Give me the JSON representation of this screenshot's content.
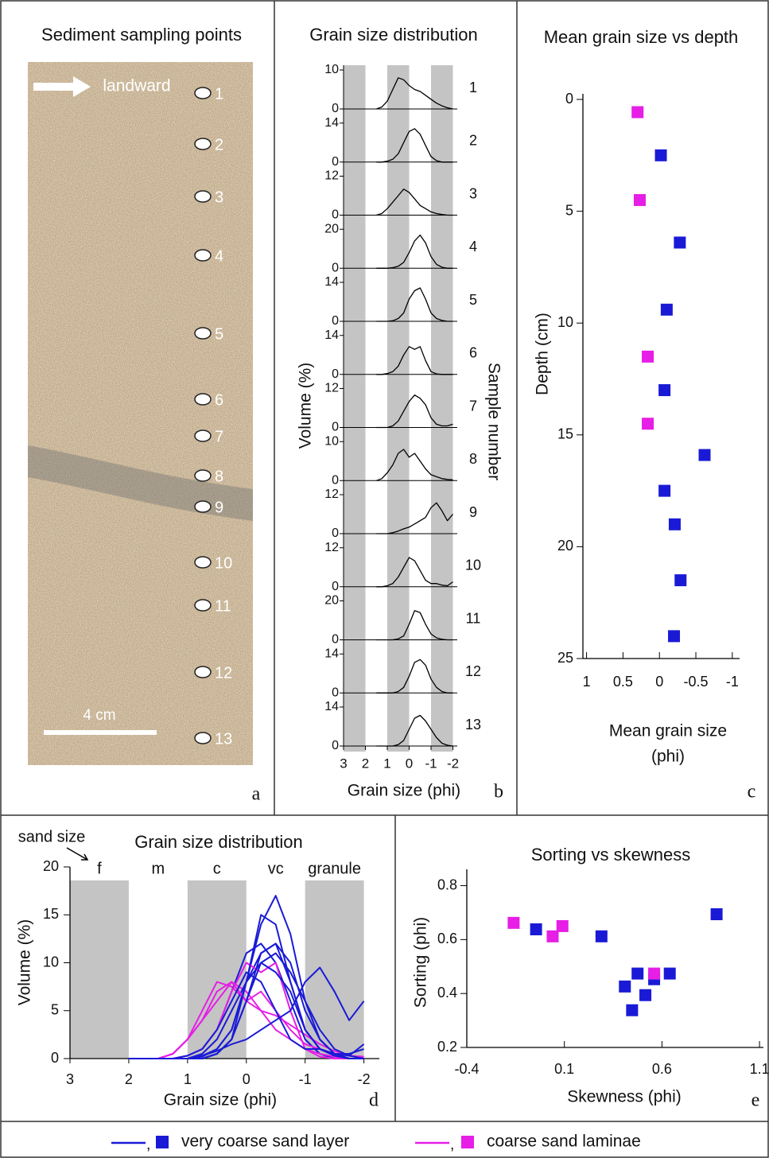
{
  "chart_data": [
    {
      "type": "photo",
      "title": "Sediment sampling points",
      "direction_label": "landward",
      "scale_label": "4 cm",
      "panel_label": "a",
      "samples": [
        1,
        2,
        3,
        4,
        5,
        6,
        7,
        8,
        9,
        10,
        11,
        12,
        13
      ]
    },
    {
      "type": "line-stack",
      "title": "Grain size distribution",
      "x_label": "Grain size (phi)",
      "y_label": "Volume (%)",
      "side_label": "Sample number",
      "panel_label": "b",
      "xlim": [
        3,
        -2.2
      ],
      "xticks": [
        3,
        2,
        1,
        0,
        -1,
        -2
      ],
      "shaded": [
        [
          3,
          2
        ],
        [
          1,
          0
        ],
        [
          -1,
          -2
        ]
      ],
      "x": [
        1.5,
        1.25,
        1,
        0.75,
        0.5,
        0.25,
        0,
        -0.25,
        -0.5,
        -0.75,
        -1,
        -1.25,
        -1.5,
        -1.75,
        -2
      ],
      "series": [
        {
          "name": "1",
          "color": "#000000",
          "ylim": [
            0,
            10
          ],
          "yticks": [
            0,
            10
          ],
          "values": [
            0,
            0.5,
            2,
            5,
            8,
            7.5,
            6,
            5,
            4.5,
            3.5,
            2.5,
            1.5,
            0.8,
            0.3,
            0
          ]
        },
        {
          "name": "2",
          "color": "#000000",
          "ylim": [
            0,
            14
          ],
          "yticks": [
            0,
            14
          ],
          "values": [
            0,
            0,
            0.3,
            1,
            3,
            7,
            11,
            12,
            10,
            6,
            2,
            0.5,
            0,
            0,
            0
          ]
        },
        {
          "name": "3",
          "color": "#000000",
          "ylim": [
            0,
            12
          ],
          "yticks": [
            0,
            12
          ],
          "values": [
            0,
            0.5,
            2,
            4,
            6,
            8,
            7,
            5,
            3,
            2,
            1,
            0.5,
            0.2,
            0,
            0
          ]
        },
        {
          "name": "4",
          "color": "#000000",
          "ylim": [
            0,
            20
          ],
          "yticks": [
            0,
            20
          ],
          "values": [
            0,
            0,
            0,
            0.3,
            1,
            3,
            8,
            14,
            17,
            13,
            6,
            2,
            0.5,
            0,
            0
          ]
        },
        {
          "name": "5",
          "color": "#000000",
          "ylim": [
            0,
            14
          ],
          "yticks": [
            0,
            14
          ],
          "values": [
            0,
            0,
            0,
            0.2,
            1,
            3,
            8,
            11,
            12,
            8,
            3,
            1,
            0.3,
            0,
            0
          ]
        },
        {
          "name": "6",
          "color": "#000000",
          "ylim": [
            0,
            14
          ],
          "yticks": [
            0,
            14
          ],
          "values": [
            0,
            0,
            0.3,
            1,
            3,
            7,
            10,
            9,
            10,
            5,
            1,
            0.2,
            0,
            0,
            0
          ]
        },
        {
          "name": "7",
          "color": "#000000",
          "ylim": [
            0,
            12
          ],
          "yticks": [
            0,
            12
          ],
          "values": [
            0,
            0,
            0,
            0.5,
            2,
            5,
            8,
            10,
            9,
            7,
            3,
            1,
            0.5,
            0.5,
            1
          ]
        },
        {
          "name": "8",
          "color": "#000000",
          "ylim": [
            0,
            10
          ],
          "yticks": [
            0,
            10
          ],
          "values": [
            0,
            0.5,
            2,
            4,
            7,
            8,
            6,
            7,
            5,
            3,
            1.5,
            1,
            0.5,
            0.3,
            0.2
          ]
        },
        {
          "name": "9",
          "color": "#000000",
          "ylim": [
            0,
            12
          ],
          "yticks": [
            0,
            12
          ],
          "values": [
            0,
            0,
            0,
            0.3,
            0.8,
            1.5,
            2,
            3,
            4,
            5,
            8,
            9.5,
            7,
            4,
            6
          ]
        },
        {
          "name": "10",
          "color": "#000000",
          "ylim": [
            0,
            12
          ],
          "yticks": [
            0,
            12
          ],
          "values": [
            0,
            0,
            0.3,
            1,
            3,
            6,
            9,
            8,
            5,
            2,
            1,
            1,
            0.5,
            0.3,
            1.5
          ]
        },
        {
          "name": "11",
          "color": "#000000",
          "ylim": [
            0,
            20
          ],
          "yticks": [
            0,
            20
          ],
          "values": [
            0,
            0,
            0,
            0,
            0.5,
            2,
            8,
            15,
            14,
            8,
            3,
            1,
            0.3,
            0,
            0
          ]
        },
        {
          "name": "12",
          "color": "#000000",
          "ylim": [
            0,
            14
          ],
          "yticks": [
            0,
            14
          ],
          "values": [
            0,
            0,
            0,
            0,
            0.5,
            2,
            6,
            11,
            12,
            10,
            5,
            2,
            0.5,
            0,
            0
          ]
        },
        {
          "name": "13",
          "color": "#000000",
          "ylim": [
            0,
            14
          ],
          "yticks": [
            0,
            14
          ],
          "values": [
            0,
            0,
            0,
            0,
            0.5,
            2,
            6,
            10,
            11,
            9,
            6,
            3,
            1,
            0.3,
            0
          ]
        }
      ]
    },
    {
      "type": "scatter",
      "title": "Mean grain size vs depth",
      "x_label": [
        "Mean grain size",
        "(phi)"
      ],
      "y_label": "Depth (cm)",
      "panel_label": "c",
      "xlim": [
        1.05,
        -1.1
      ],
      "xticks": [
        1,
        0.5,
        0,
        -0.5,
        -1
      ],
      "ylim": [
        0,
        25
      ],
      "yticks": [
        0,
        5,
        10,
        15,
        20,
        25
      ],
      "y_inverted": true,
      "series": [
        {
          "name": "very coarse sand layer",
          "color": "#1a1ad6",
          "x": [
            -0.02,
            -0.28,
            -0.1,
            -0.07,
            -0.62,
            -0.07,
            -0.21,
            -0.29,
            -0.2
          ],
          "values": [
            2.5,
            6.4,
            9.4,
            13,
            15.9,
            17.5,
            19,
            21.5,
            24
          ]
        },
        {
          "name": "coarse sand laminae",
          "color": "#e61ee6",
          "x": [
            0.3,
            0.27,
            0.16,
            0.16
          ],
          "values": [
            0.57,
            4.5,
            11.5,
            14.5
          ]
        }
      ]
    },
    {
      "type": "line-overlay",
      "title": "Grain size distribution",
      "corner_label": "sand size",
      "size_classes": [
        "f",
        "m",
        "c",
        "vc",
        "granule"
      ],
      "x_label": "Grain size (phi)",
      "y_label": "Volume (%)",
      "panel_label": "d",
      "xlim": [
        3,
        -2.1
      ],
      "xticks": [
        3,
        2,
        1,
        0,
        -1,
        -2
      ],
      "ylim": [
        0,
        20
      ],
      "yticks": [
        0,
        5,
        10,
        15,
        20
      ],
      "shaded": [
        [
          3,
          2
        ],
        [
          1,
          0
        ],
        [
          -1,
          -2
        ]
      ],
      "x": [
        2,
        1.75,
        1.5,
        1.25,
        1,
        0.75,
        0.5,
        0.25,
        0,
        -0.25,
        -0.5,
        -0.75,
        -1,
        -1.25,
        -1.5,
        -1.75,
        -2
      ],
      "series": [
        {
          "color": "#e61ee6",
          "values": [
            0,
            0,
            0,
            0.5,
            2,
            5,
            8,
            7.5,
            6,
            5,
            4.5,
            3.5,
            2.5,
            1.5,
            0.8,
            0.3,
            0
          ]
        },
        {
          "color": "#1a1ad6",
          "values": [
            0,
            0,
            0,
            0,
            0.3,
            1,
            3,
            7,
            11,
            12,
            10,
            6,
            2,
            0.5,
            0,
            0,
            0
          ]
        },
        {
          "color": "#e61ee6",
          "values": [
            0,
            0,
            0,
            0.5,
            2,
            4,
            6,
            8,
            7,
            5,
            3,
            2,
            1,
            0.5,
            0.2,
            0,
            0
          ]
        },
        {
          "color": "#1a1ad6",
          "values": [
            0,
            0,
            0,
            0,
            0,
            0.3,
            1,
            3,
            8,
            14,
            17,
            13,
            6,
            2,
            0.5,
            0,
            0
          ]
        },
        {
          "color": "#1a1ad6",
          "values": [
            0,
            0,
            0,
            0,
            0,
            0.2,
            1,
            3,
            8,
            11,
            12,
            8,
            3,
            1,
            0.3,
            0,
            0
          ]
        },
        {
          "color": "#e61ee6",
          "values": [
            0,
            0,
            0,
            0,
            0.3,
            1,
            3,
            7,
            10,
            9,
            10,
            5,
            1,
            0.2,
            0,
            0,
            0
          ]
        },
        {
          "color": "#1a1ad6",
          "values": [
            0,
            0,
            0,
            0,
            0,
            0.5,
            2,
            5,
            8,
            10,
            9,
            7,
            3,
            1,
            0.5,
            0.5,
            1
          ]
        },
        {
          "color": "#e61ee6",
          "values": [
            0,
            0,
            0,
            0.5,
            2,
            4,
            7,
            8,
            6,
            7,
            5,
            3,
            1.5,
            1,
            0.5,
            0.3,
            0.2
          ]
        },
        {
          "color": "#1a1ad6",
          "values": [
            0,
            0,
            0,
            0,
            0,
            0.3,
            0.8,
            1.5,
            2,
            3,
            4,
            5,
            8,
            9.5,
            7,
            4,
            6
          ]
        },
        {
          "color": "#1a1ad6",
          "values": [
            0,
            0,
            0,
            0,
            0.3,
            1,
            3,
            6,
            9,
            8,
            5,
            2,
            1,
            1,
            0.5,
            0.3,
            1.5
          ]
        },
        {
          "color": "#1a1ad6",
          "values": [
            0,
            0,
            0,
            0,
            0,
            0,
            0.5,
            2,
            8,
            15,
            14,
            8,
            3,
            1,
            0.3,
            0,
            0
          ]
        },
        {
          "color": "#1a1ad6",
          "values": [
            0,
            0,
            0,
            0,
            0,
            0,
            0.5,
            2,
            6,
            11,
            12,
            10,
            5,
            2,
            0.5,
            0,
            0
          ]
        },
        {
          "color": "#1a1ad6",
          "values": [
            0,
            0,
            0,
            0,
            0,
            0,
            0.5,
            2,
            6,
            10,
            11,
            9,
            6,
            3,
            1,
            0.3,
            0
          ]
        }
      ]
    },
    {
      "type": "scatter",
      "title": "Sorting vs skewness",
      "x_label": "Skewness (phi)",
      "y_label": "Sorting (phi)",
      "panel_label": "e",
      "xlim": [
        -0.4,
        1.12
      ],
      "xticks": [
        -0.4,
        0.1,
        0.6,
        1.1
      ],
      "ylim": [
        0.2,
        0.84
      ],
      "yticks": [
        0.2,
        0.4,
        0.6,
        0.8
      ],
      "series": [
        {
          "color": "#1a1ad6",
          "x": [
            -0.045,
            0.29,
            0.88,
            0.41,
            0.475,
            0.56,
            0.64,
            0.515,
            0.447
          ],
          "values": [
            0.638,
            0.612,
            0.694,
            0.426,
            0.474,
            0.453,
            0.474,
            0.394,
            0.338
          ]
        },
        {
          "color": "#e61ee6",
          "x": [
            -0.16,
            0.04,
            0.09,
            0.56
          ],
          "values": [
            0.662,
            0.612,
            0.65,
            0.474
          ]
        }
      ]
    }
  ],
  "legend_separator": ","
}
